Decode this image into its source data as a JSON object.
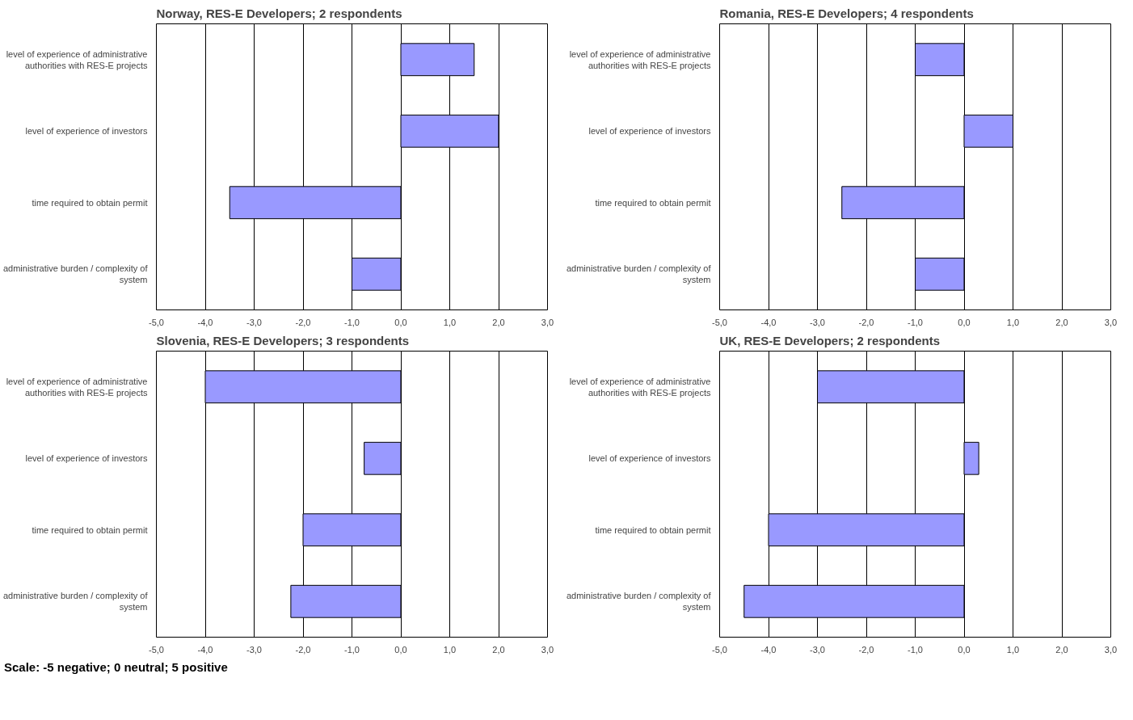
{
  "chart_data": [
    {
      "type": "bar",
      "orientation": "horizontal",
      "title": "Norway, RES-E Developers; 2 respondents",
      "categories": [
        "level of experience of administrative authorities with RES-E projects",
        "level of experience of investors",
        "time required to obtain permit",
        "administrative burden / complexity of system"
      ],
      "values": [
        1.5,
        2.0,
        -3.5,
        -1.0
      ],
      "color": "#9999ff",
      "xlim": [
        -5,
        3
      ],
      "xticks": [
        {
          "value": -5,
          "label": "-5,0"
        },
        {
          "value": -4,
          "label": "-4,0"
        },
        {
          "value": -3,
          "label": "-3,0"
        },
        {
          "value": -2,
          "label": "-2,0"
        },
        {
          "value": -1,
          "label": "-1,0"
        },
        {
          "value": 0,
          "label": "0,0"
        },
        {
          "value": 1,
          "label": "1,0"
        },
        {
          "value": 2,
          "label": "2,0"
        },
        {
          "value": 3,
          "label": "3,0"
        }
      ],
      "grid": "x"
    },
    {
      "type": "bar",
      "orientation": "horizontal",
      "title": "Romania, RES-E Developers; 4 respondents",
      "categories": [
        "level of experience of administrative authorities with RES-E projects",
        "level of experience of investors",
        "time required to obtain permit",
        "administrative burden / complexity of system"
      ],
      "values": [
        -1.0,
        1.0,
        -2.5,
        -1.0
      ],
      "color": "#9999ff",
      "xlim": [
        -5,
        3
      ],
      "xticks": [
        {
          "value": -5,
          "label": "-5,0"
        },
        {
          "value": -4,
          "label": "-4,0"
        },
        {
          "value": -3,
          "label": "-3,0"
        },
        {
          "value": -2,
          "label": "-2,0"
        },
        {
          "value": -1,
          "label": "-1,0"
        },
        {
          "value": 0,
          "label": "0,0"
        },
        {
          "value": 1,
          "label": "1,0"
        },
        {
          "value": 2,
          "label": "2,0"
        },
        {
          "value": 3,
          "label": "3,0"
        }
      ],
      "grid": "x"
    },
    {
      "type": "bar",
      "orientation": "horizontal",
      "title": "Slovenia, RES-E Developers; 3 respondents",
      "categories": [
        "level of experience of administrative authorities with RES-E projects",
        "level of experience of investors",
        "time required to obtain permit",
        "administrative burden / complexity of system"
      ],
      "values": [
        -4.0,
        -0.75,
        -2.0,
        -2.25
      ],
      "color": "#9999ff",
      "xlim": [
        -5,
        3
      ],
      "xticks": [
        {
          "value": -5,
          "label": "-5,0"
        },
        {
          "value": -4,
          "label": "-4,0"
        },
        {
          "value": -3,
          "label": "-3,0"
        },
        {
          "value": -2,
          "label": "-2,0"
        },
        {
          "value": -1,
          "label": "-1,0"
        },
        {
          "value": 0,
          "label": "0,0"
        },
        {
          "value": 1,
          "label": "1,0"
        },
        {
          "value": 2,
          "label": "2,0"
        },
        {
          "value": 3,
          "label": "3,0"
        }
      ],
      "grid": "x"
    },
    {
      "type": "bar",
      "orientation": "horizontal",
      "title": "UK, RES-E Developers; 2 respondents",
      "categories": [
        "level of experience of administrative authorities with RES-E projects",
        "level of experience of investors",
        "time required to obtain permit",
        "administrative burden / complexity of system"
      ],
      "values": [
        -3.0,
        0.3,
        -4.0,
        -4.5
      ],
      "color": "#9999ff",
      "xlim": [
        -5,
        3
      ],
      "xticks": [
        {
          "value": -5,
          "label": "-5,0"
        },
        {
          "value": -4,
          "label": "-4,0"
        },
        {
          "value": -3,
          "label": "-3,0"
        },
        {
          "value": -2,
          "label": "-2,0"
        },
        {
          "value": -1,
          "label": "-1,0"
        },
        {
          "value": 0,
          "label": "0,0"
        },
        {
          "value": 1,
          "label": "1,0"
        },
        {
          "value": 2,
          "label": "2,0"
        },
        {
          "value": 3,
          "label": "3,0"
        }
      ],
      "grid": "x",
      "annotations": [
        "Scale: -5 negative; 0 neutral; 5 positive"
      ]
    }
  ]
}
